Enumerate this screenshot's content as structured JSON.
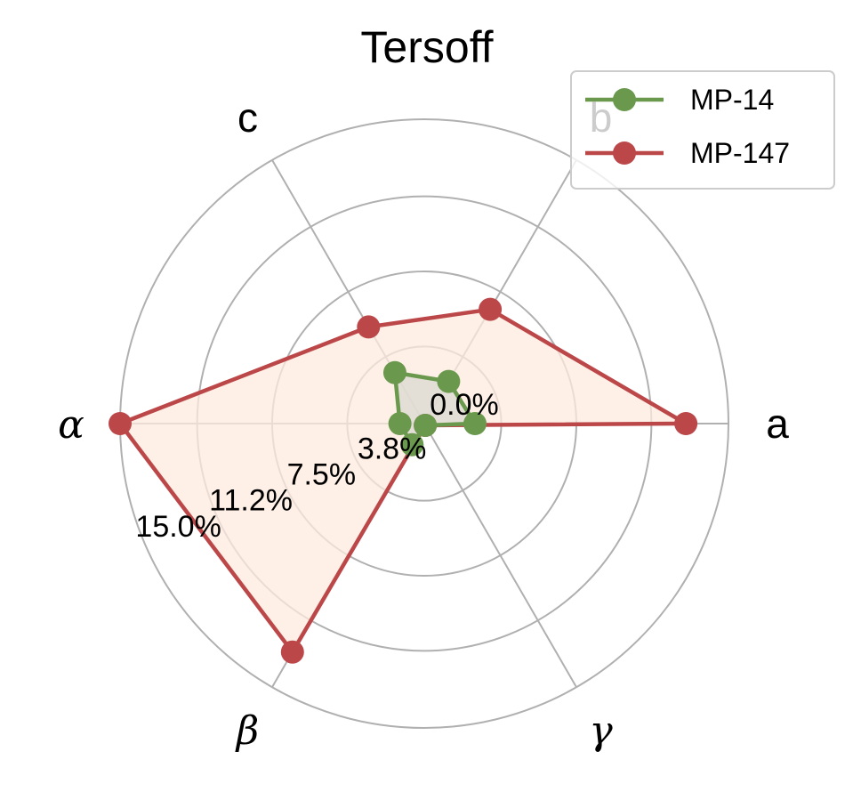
{
  "chart_data": {
    "type": "radar",
    "title": "Tersoff",
    "axes": [
      "a",
      "b",
      "c",
      "α",
      "β",
      "γ"
    ],
    "greek_axes": [
      "α",
      "β",
      "γ"
    ],
    "rlim": [
      0,
      15.0
    ],
    "r_ticks": [
      0.0,
      3.8,
      7.5,
      11.2,
      15.0
    ],
    "r_tick_labels": [
      "0.0%",
      "3.8%",
      "7.5%",
      "11.2%",
      "15.0%"
    ],
    "grid": true,
    "legend_position": "top-right",
    "series": [
      {
        "name": "MP-14",
        "color": "#6a994e",
        "fill": "#d9d9d0",
        "values": [
          2.5,
          2.4,
          2.9,
          1.2,
          1.2,
          0.1
        ]
      },
      {
        "name": "MP-147",
        "color": "#bc4749",
        "fill": "#fdebdd",
        "values": [
          12.9,
          6.5,
          5.5,
          15.0,
          13.0,
          0.1
        ]
      }
    ]
  }
}
